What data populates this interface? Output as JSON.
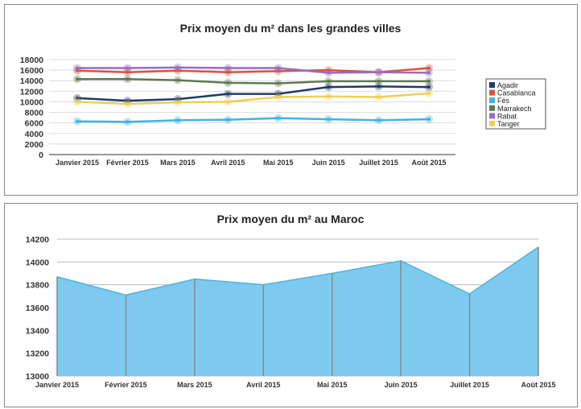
{
  "chart_data": [
    {
      "type": "line",
      "title": "Prix moyen du m² dans les grandes villes",
      "categories": [
        "Janvier 2015",
        "Février 2015",
        "Mars 2015",
        "Avril 2015",
        "Mai 2015",
        "Juin 2015",
        "Juillet 2015",
        "Août 2015"
      ],
      "ylim": [
        0,
        18000
      ],
      "yticks": [
        0,
        2000,
        4000,
        6000,
        8000,
        10000,
        12000,
        14000,
        16000,
        18000
      ],
      "grid": true,
      "legend": "right",
      "series": [
        {
          "name": "Agadir",
          "color": "#1f3a68",
          "values": [
            10700,
            10200,
            10500,
            11500,
            11500,
            12800,
            12900,
            12800
          ]
        },
        {
          "name": "Casablanca",
          "color": "#d9553a",
          "values": [
            15900,
            15600,
            15900,
            15600,
            15800,
            16000,
            15600,
            16400
          ]
        },
        {
          "name": "Fès",
          "color": "#3db4e6",
          "values": [
            6300,
            6200,
            6500,
            6600,
            6900,
            6700,
            6500,
            6700
          ]
        },
        {
          "name": "Marrakech",
          "color": "#5e7a52",
          "values": [
            14300,
            14300,
            14100,
            13600,
            13500,
            13900,
            13900,
            13900
          ]
        },
        {
          "name": "Rabat",
          "color": "#9b6bbf",
          "values": [
            16400,
            16400,
            16500,
            16400,
            16400,
            15500,
            15600,
            15500
          ]
        },
        {
          "name": "Tanger",
          "color": "#f0cf55",
          "values": [
            10000,
            9600,
            9900,
            10000,
            10900,
            11000,
            10900,
            11600
          ]
        }
      ]
    },
    {
      "type": "area",
      "title": "Prix moyen du m²  au Maroc",
      "categories": [
        "Janvier 2015",
        "Février 2015",
        "Mars 2015",
        "Avril 2015",
        "Mai 2015",
        "Juin 2015",
        "Juillet 2015",
        "Août 2015"
      ],
      "ylim": [
        13000,
        14200
      ],
      "yticks": [
        13000,
        13200,
        13400,
        13600,
        13800,
        14000,
        14200
      ],
      "grid": true,
      "color": "#7dcaee",
      "values": [
        13870,
        13710,
        13850,
        13800,
        13900,
        14010,
        13720,
        14130
      ]
    }
  ]
}
